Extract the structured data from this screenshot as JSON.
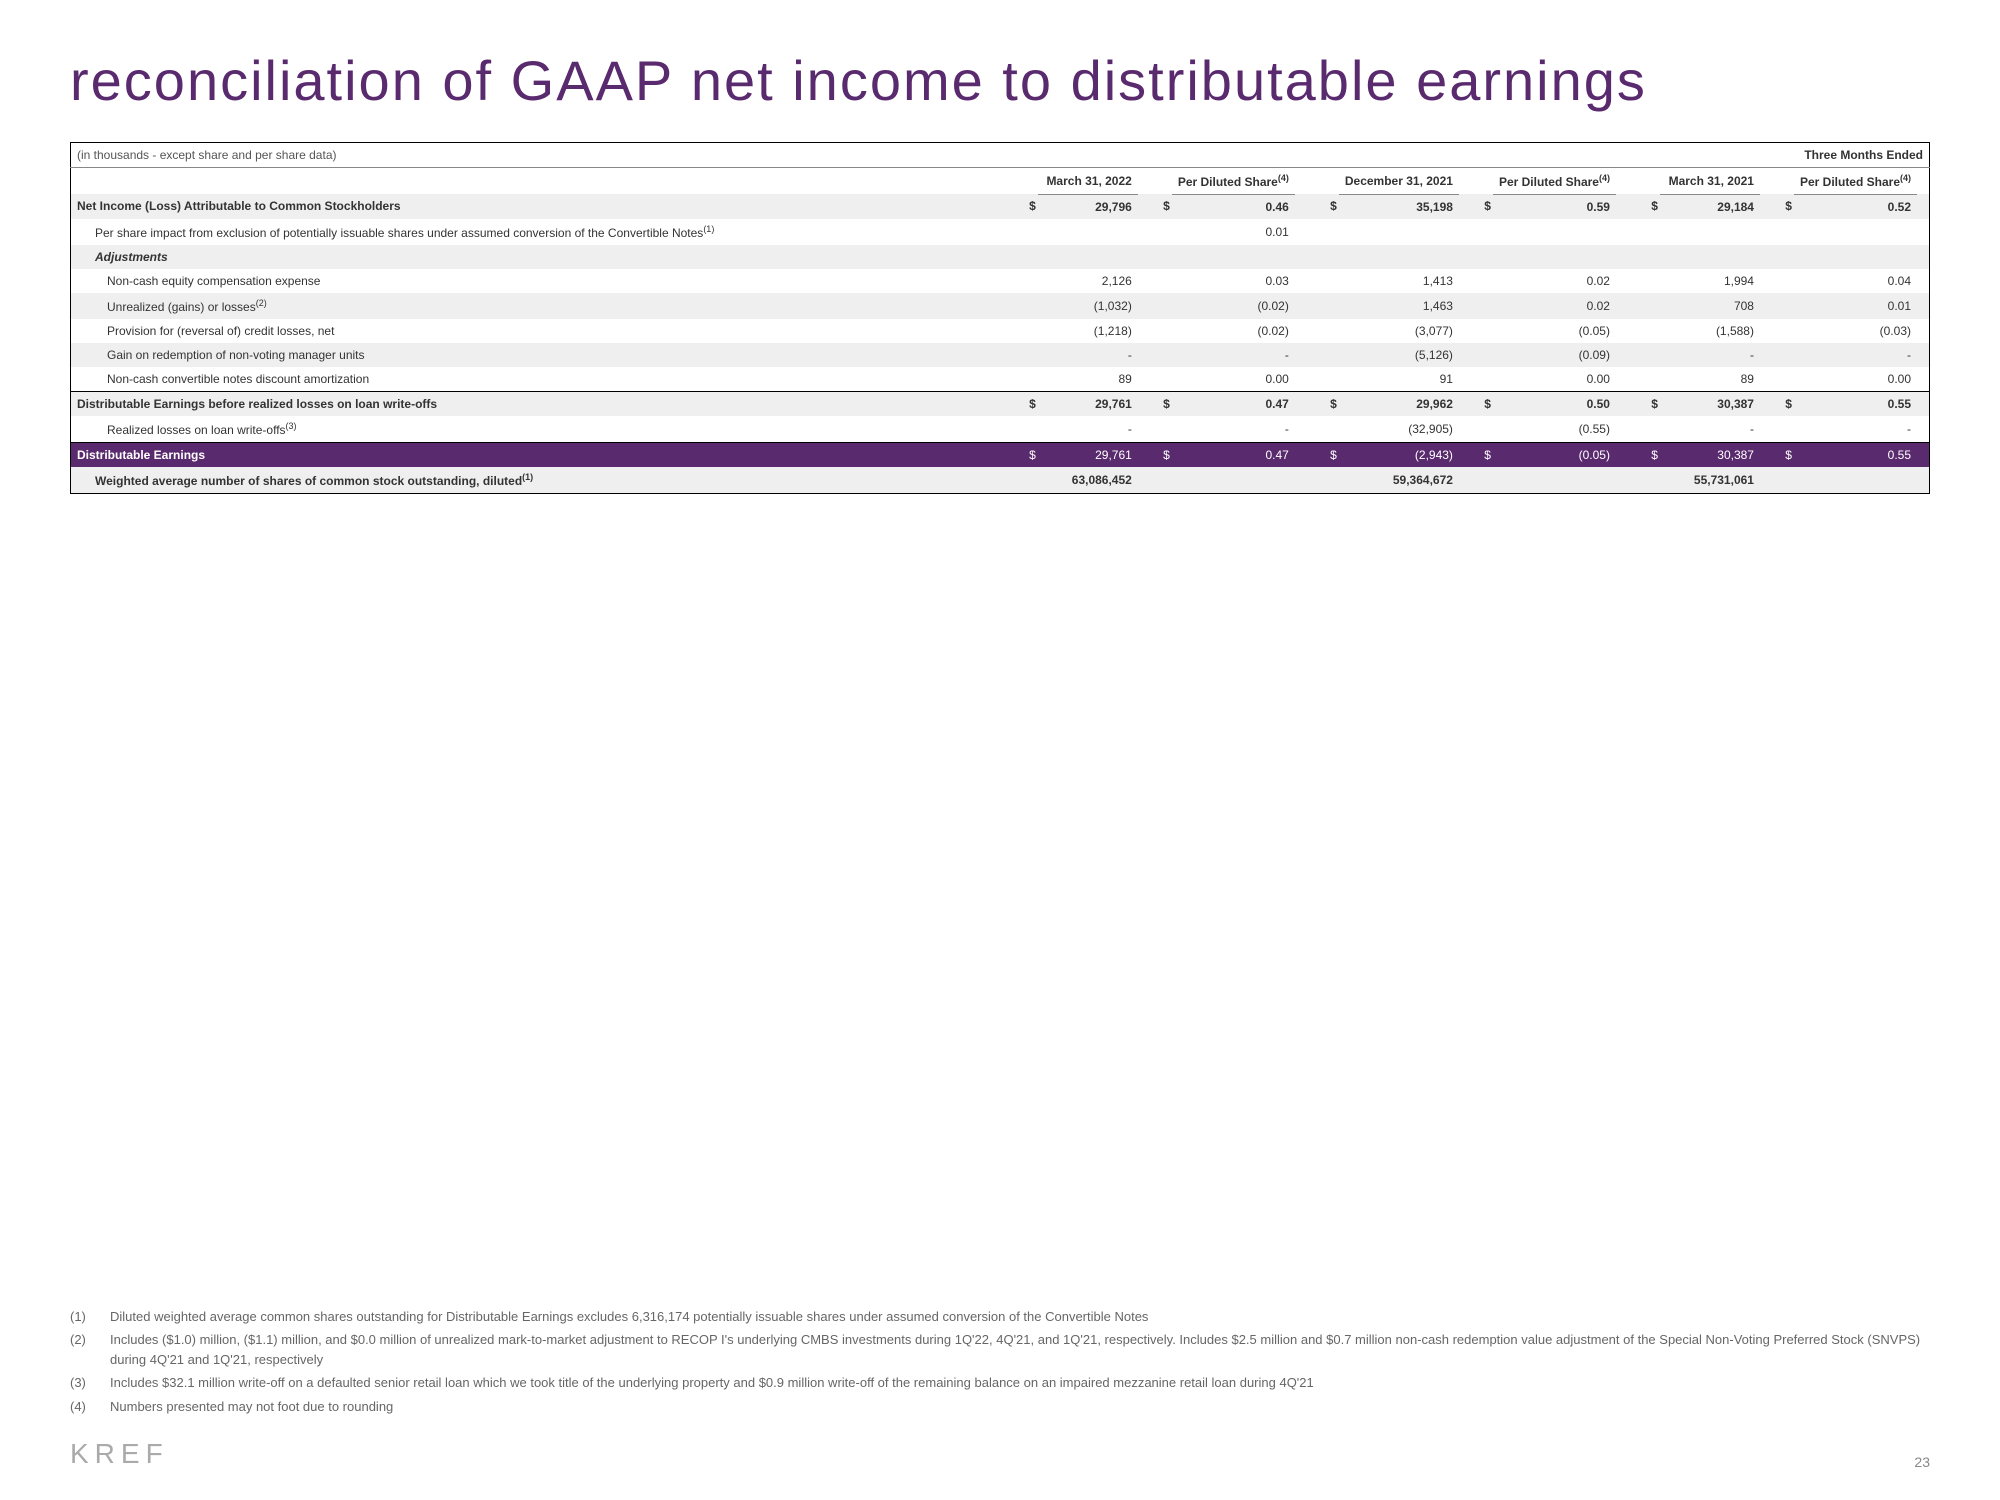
{
  "title": "reconciliation of GAAP net income to distributable earnings",
  "caption": "(in thousands - except share and per share data)",
  "three_months": "Three Months Ended",
  "periods": [
    "March 31, 2022",
    "December 31, 2021",
    "March 31, 2021"
  ],
  "pds_label": "Per Diluted Share",
  "pds_sup": "(4)",
  "rows": [
    {
      "id": "r0",
      "label": "Net Income (Loss) Attributable to Common Stockholders",
      "indent": 0,
      "bold": true,
      "shade": true,
      "dollar": true,
      "v": [
        "29,796",
        "0.46",
        "35,198",
        "0.59",
        "29,184",
        "0.52"
      ]
    },
    {
      "id": "r1",
      "label": "Per share impact from exclusion of potentially issuable shares under assumed conversion of the Convertible Notes",
      "sup": "(1)",
      "indent": 1,
      "v": [
        "",
        "0.01",
        "",
        "",
        "",
        ""
      ]
    },
    {
      "id": "r2",
      "label": "Adjustments",
      "indent": 1,
      "italic": true,
      "shade": true,
      "v": [
        "",
        "",
        "",
        "",
        "",
        ""
      ]
    },
    {
      "id": "r3",
      "label": "Non-cash equity compensation expense",
      "indent": 2,
      "v": [
        "2,126",
        "0.03",
        "1,413",
        "0.02",
        "1,994",
        "0.04"
      ]
    },
    {
      "id": "r4",
      "label": "Unrealized (gains) or losses",
      "sup": "(2)",
      "indent": 2,
      "shade": true,
      "v": [
        "(1,032)",
        "(0.02)",
        "1,463",
        "0.02",
        "708",
        "0.01"
      ]
    },
    {
      "id": "r5",
      "label": "Provision for (reversal of) credit losses, net",
      "indent": 2,
      "v": [
        "(1,218)",
        "(0.02)",
        "(3,077)",
        "(0.05)",
        "(1,588)",
        "(0.03)"
      ]
    },
    {
      "id": "r6",
      "label": "Gain on redemption of non-voting manager units",
      "indent": 2,
      "shade": true,
      "v": [
        "-",
        "-",
        "(5,126)",
        "(0.09)",
        "-",
        "-"
      ]
    },
    {
      "id": "r7",
      "label": "Non-cash convertible notes discount amortization",
      "indent": 2,
      "v": [
        "89",
        "0.00",
        "91",
        "0.00",
        "89",
        "0.00"
      ]
    },
    {
      "id": "r8",
      "label": "Distributable Earnings before realized losses on loan write-offs",
      "indent": 0,
      "bold": true,
      "shade": true,
      "dollar": true,
      "topline": true,
      "v": [
        "29,761",
        "0.47",
        "29,962",
        "0.50",
        "30,387",
        "0.55"
      ]
    },
    {
      "id": "r9",
      "label": "Realized losses on loan write-offs",
      "sup": "(3)",
      "indent": 2,
      "v": [
        "-",
        "-",
        "(32,905)",
        "(0.55)",
        "-",
        "-"
      ]
    },
    {
      "id": "r10",
      "label": "Distributable Earnings",
      "indent": 0,
      "highlight": true,
      "dollar": true,
      "topline": true,
      "v": [
        "29,761",
        "0.47",
        "(2,943)",
        "(0.05)",
        "30,387",
        "0.55"
      ]
    },
    {
      "id": "r11",
      "label": "Weighted average number of shares of common stock outstanding, diluted",
      "sup": "(1)",
      "indent": 1,
      "bold": true,
      "shade": true,
      "btmline": true,
      "v": [
        "63,086,452",
        "",
        "59,364,672",
        "",
        "55,731,061",
        ""
      ]
    }
  ],
  "footnotes": [
    {
      "n": "(1)",
      "t": "Diluted weighted average common shares outstanding for Distributable Earnings excludes 6,316,174 potentially issuable shares under assumed conversion of the Convertible Notes"
    },
    {
      "n": "(2)",
      "t": "Includes ($1.0) million, ($1.1) million, and $0.0 million of unrealized mark-to-market adjustment to RECOP I's underlying CMBS investments during 1Q'22, 4Q'21, and 1Q'21, respectively. Includes $2.5 million and $0.7 million non-cash redemption value adjustment of the Special Non-Voting Preferred Stock (SNVPS) during 4Q'21 and 1Q'21, respectively"
    },
    {
      "n": "(3)",
      "t": "Includes $32.1 million write-off on a defaulted senior retail loan which we took title of the underlying property and $0.9 million write-off of the remaining balance on an impaired mezzanine retail loan during 4Q'21"
    },
    {
      "n": "(4)",
      "t": "Numbers presented may not foot due to rounding"
    }
  ],
  "logo": "KREF",
  "page": "23"
}
